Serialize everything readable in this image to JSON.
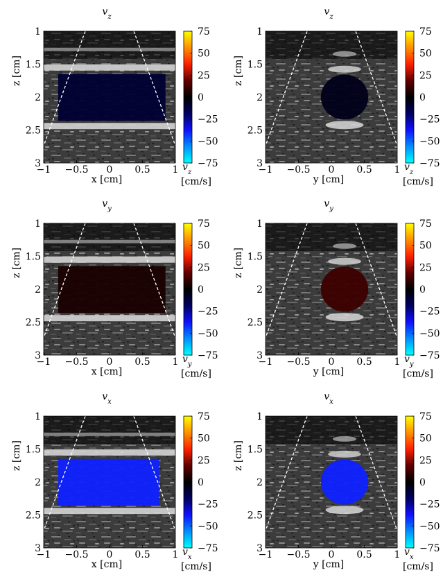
{
  "colors": {
    "colormap": [
      "#00ffff",
      "#0090ff",
      "#1010ff",
      "#000060",
      "#000000",
      "#600000",
      "#ff2000",
      "#ff9000",
      "#ffff00"
    ],
    "background": "#ffffff",
    "sector_lines": "#ffffff"
  },
  "chart_data": [
    {
      "type": "heatmap",
      "title": "v",
      "title_sub": "z",
      "xlabel": "x [cm]",
      "ylabel": "z [cm]",
      "xlim": [
        -1,
        1
      ],
      "ylim": [
        1,
        3
      ],
      "xticks": [
        "−1",
        "−0.5",
        "0",
        "0.5",
        "1"
      ],
      "yticks": [
        "1",
        "1.5",
        "2",
        "2.5",
        "3"
      ],
      "colorbar": {
        "ticks": [
          "75",
          "50",
          "25",
          "0",
          "−25",
          "−50",
          "−75"
        ],
        "range": [
          -75,
          75
        ],
        "label": "v",
        "label_sub": "z",
        "unit": "[cm/s]"
      },
      "flow": {
        "shape": "band",
        "x": [
          -0.78,
          0.85
        ],
        "z": [
          1.65,
          2.36
        ],
        "mean_velocity": -10
      },
      "stripes": {
        "shape": "band",
        "z": [
          1.65,
          2.36
        ]
      }
    },
    {
      "type": "heatmap",
      "title": "v",
      "title_sub": "z",
      "xlabel": "y [cm]",
      "ylabel": "z [cm]",
      "xlim": [
        -1,
        1
      ],
      "ylim": [
        1,
        3
      ],
      "xticks": [
        "−1",
        "−0.5",
        "0",
        "0.5",
        "1"
      ],
      "yticks": [
        "1",
        "1.5",
        "2",
        "2.5",
        "3"
      ],
      "colorbar": {
        "ticks": [
          "75",
          "50",
          "25",
          "0",
          "−25",
          "−50",
          "−75"
        ],
        "range": [
          -75,
          75
        ],
        "label": "v",
        "label_sub": "z",
        "unit": "[cm/s]"
      },
      "flow": {
        "shape": "circle",
        "center": [
          0.2,
          2.0
        ],
        "radius": 0.36,
        "mean_velocity": -5
      },
      "stripes": {
        "shape": "circle"
      }
    },
    {
      "type": "heatmap",
      "title": "v",
      "title_sub": "y",
      "xlabel": "x [cm]",
      "ylabel": "z [cm]",
      "xlim": [
        -1,
        1
      ],
      "ylim": [
        1,
        3
      ],
      "xticks": [
        "−1",
        "−0.5",
        "0",
        "0.5",
        "1"
      ],
      "yticks": [
        "1",
        "1.5",
        "2",
        "2.5",
        "3"
      ],
      "colorbar": {
        "ticks": [
          "75",
          "50",
          "25",
          "0",
          "−25",
          "−50",
          "−75"
        ],
        "range": [
          -75,
          75
        ],
        "label": "v",
        "label_sub": "y",
        "unit": "[cm/s]"
      },
      "flow": {
        "shape": "band",
        "x": [
          -0.78,
          0.85
        ],
        "z": [
          1.65,
          2.36
        ],
        "mean_velocity": 5
      },
      "stripes": {
        "shape": "band",
        "z": [
          1.65,
          2.36
        ]
      }
    },
    {
      "type": "heatmap",
      "title": "v",
      "title_sub": "y",
      "xlabel": "y [cm]",
      "ylabel": "z [cm]",
      "xlim": [
        -1,
        1
      ],
      "ylim": [
        1,
        3
      ],
      "xticks": [
        "−1",
        "−0.5",
        "0",
        "0.5",
        "1"
      ],
      "yticks": [
        "1",
        "1.5",
        "2",
        "2.5",
        "3"
      ],
      "colorbar": {
        "ticks": [
          "75",
          "50",
          "25",
          "0",
          "−25",
          "−50",
          "−75"
        ],
        "range": [
          -75,
          75
        ],
        "label": "v",
        "label_sub": "y",
        "unit": "[cm/s]"
      },
      "flow": {
        "shape": "circle",
        "center": [
          0.2,
          2.0
        ],
        "radius": 0.36,
        "mean_velocity": 12
      },
      "stripes": {
        "shape": "circle"
      }
    },
    {
      "type": "heatmap",
      "title": "v",
      "title_sub": "x",
      "xlabel": "x [cm]",
      "ylabel": "z [cm]",
      "xlim": [
        -1,
        1
      ],
      "ylim": [
        1,
        3
      ],
      "xticks": [
        "−1",
        "−0.5",
        "0",
        "0.5",
        "1"
      ],
      "yticks": [
        "1",
        "1.5",
        "2",
        "2.5",
        "3"
      ],
      "colorbar": {
        "ticks": [
          "75",
          "50",
          "25",
          "0",
          "−25",
          "−50",
          "−75"
        ],
        "range": [
          -75,
          75
        ],
        "label": "v",
        "label_sub": "x",
        "unit": "[cm/s]"
      },
      "flow": {
        "shape": "band",
        "x": [
          -0.78,
          0.75
        ],
        "z": [
          1.65,
          2.36
        ],
        "mean_velocity": -40
      },
      "stripes": {
        "shape": "band",
        "z": [
          1.65,
          2.36
        ]
      }
    },
    {
      "type": "heatmap",
      "title": "v",
      "title_sub": "x",
      "xlabel": "y [cm]",
      "ylabel": "z [cm]",
      "xlim": [
        -1,
        1
      ],
      "ylim": [
        1,
        3
      ],
      "xticks": [
        "−1",
        "−0.5",
        "0",
        "0.5",
        "1"
      ],
      "yticks": [
        "1",
        "1.5",
        "2",
        "2.5",
        "3"
      ],
      "colorbar": {
        "ticks": [
          "75",
          "50",
          "25",
          "0",
          "−25",
          "−50",
          "−75"
        ],
        "range": [
          -75,
          75
        ],
        "label": "v",
        "label_sub": "x",
        "unit": "[cm/s]"
      },
      "flow": {
        "shape": "circle",
        "center": [
          0.2,
          2.0
        ],
        "radius": 0.36,
        "mean_velocity": -40
      },
      "stripes": {
        "shape": "circle"
      }
    }
  ]
}
